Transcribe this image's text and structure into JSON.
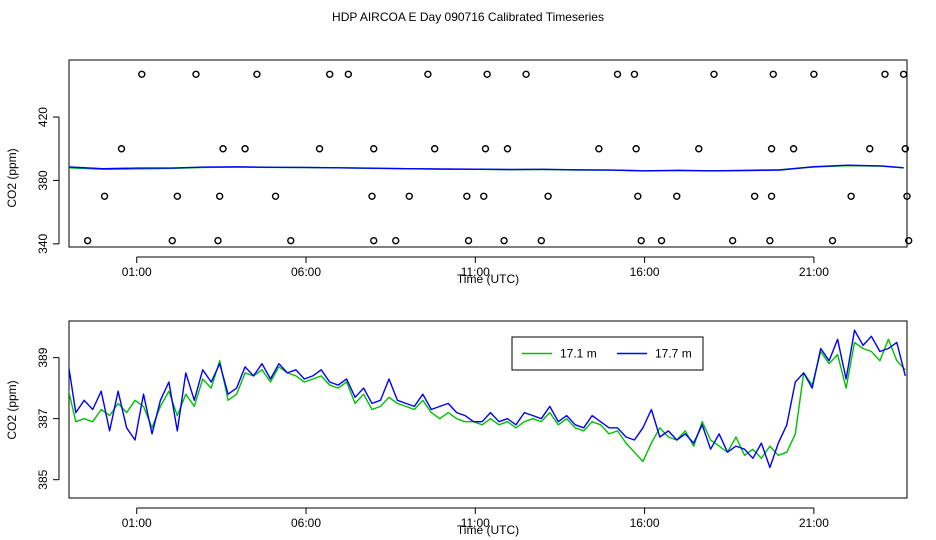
{
  "title": "HDP AIRCOA E  Day 090716  Calibrated Timeseries",
  "colors": {
    "green": "#00c000",
    "blue": "#0000ff",
    "axis": "#000000"
  },
  "chart_data": [
    {
      "type": "scatter",
      "title": "",
      "xlabel": "Time (UTC)",
      "ylabel": "CO2 (ppm)",
      "xlim": [
        -1.0,
        23.75
      ],
      "ylim": [
        338,
        456
      ],
      "x_ticks": [
        1,
        6,
        11,
        16,
        21
      ],
      "x_tick_labels": [
        "01:00",
        "06:00",
        "11:00",
        "16:00",
        "21:00"
      ],
      "y_ticks": [
        340,
        380,
        420
      ],
      "y_tick_labels": [
        "340",
        "380",
        "420"
      ],
      "grid": false,
      "series": [
        {
          "kind": "points",
          "x": [
            1.15,
            2.75,
            4.55,
            6.7,
            7.25,
            9.6,
            11.35,
            12.5,
            15.2,
            15.7,
            18.05,
            19.8,
            21.0,
            23.1,
            23.65,
            0.55,
            3.55,
            4.2,
            6.4,
            8.0,
            9.8,
            11.3,
            11.95,
            14.65,
            15.75,
            17.6,
            19.75,
            20.4,
            22.65,
            23.7,
            0.05,
            2.2,
            3.45,
            5.1,
            7.95,
            9.05,
            10.75,
            11.25,
            13.15,
            15.8,
            16.95,
            19.25,
            19.75,
            22.1,
            23.75,
            -0.45,
            2.05,
            3.4,
            5.55,
            8.0,
            8.65,
            10.8,
            11.85,
            12.95,
            15.9,
            16.5,
            18.6,
            19.7,
            21.55,
            23.8
          ],
          "y": [
            447,
            447,
            447,
            447,
            447,
            447,
            447,
            447,
            447,
            447,
            447,
            447,
            447,
            447,
            447,
            400,
            400,
            400,
            400,
            400,
            400,
            400,
            400,
            400,
            400,
            400,
            400,
            400,
            400,
            400,
            370,
            370,
            370,
            370,
            370,
            370,
            370,
            370,
            370,
            370,
            370,
            370,
            370,
            370,
            370,
            342,
            342,
            342,
            342,
            342,
            342,
            342,
            342,
            342,
            342,
            342,
            342,
            342,
            342,
            342
          ]
        },
        {
          "kind": "line",
          "color": "#00c000",
          "x": [
            -1.0,
            0.0,
            1.0,
            2.0,
            3.0,
            4.0,
            5.0,
            6.0,
            7.0,
            8.0,
            9.0,
            10.0,
            11.0,
            12.0,
            13.0,
            14.0,
            15.0,
            16.0,
            17.0,
            18.0,
            19.0,
            20.0,
            21.0,
            22.0,
            23.0,
            23.65
          ],
          "y": [
            388,
            387,
            387.3,
            387.6,
            388.2,
            388.4,
            388.2,
            388.1,
            388.0,
            387.6,
            387.4,
            387.1,
            387.0,
            386.8,
            386.9,
            386.6,
            386.5,
            386.0,
            386.2,
            386.0,
            386.4,
            386.8,
            388.5,
            389.3,
            389.0,
            388.0
          ]
        },
        {
          "kind": "line",
          "color": "#0000ff",
          "x": [
            -1.0,
            0.0,
            1.0,
            2.0,
            3.0,
            4.0,
            5.0,
            6.0,
            7.0,
            8.0,
            9.0,
            10.0,
            11.0,
            12.0,
            13.0,
            14.0,
            15.0,
            16.0,
            17.0,
            18.0,
            19.0,
            20.0,
            21.0,
            22.0,
            23.0,
            23.65
          ],
          "y": [
            388.5,
            387.4,
            387.8,
            387.8,
            388.4,
            388.6,
            388.3,
            388.2,
            388.0,
            387.7,
            387.4,
            387.2,
            387.1,
            386.9,
            387.0,
            386.7,
            386.5,
            386.1,
            386.4,
            386.1,
            386.3,
            386.6,
            388.7,
            389.6,
            389.2,
            388.0
          ]
        }
      ]
    },
    {
      "type": "line",
      "title": "",
      "xlabel": "Time (UTC)",
      "ylabel": "CO2 (ppm)",
      "xlim": [
        -1.0,
        23.75
      ],
      "ylim": [
        384.4,
        390.2
      ],
      "x_ticks": [
        1,
        6,
        11,
        16,
        21
      ],
      "x_tick_labels": [
        "01:00",
        "06:00",
        "11:00",
        "16:00",
        "21:00"
      ],
      "y_ticks": [
        385,
        387,
        389
      ],
      "y_tick_labels": [
        "385",
        "387",
        "389"
      ],
      "grid": false,
      "legend": "top-right",
      "series": [
        {
          "name": "17.1 m",
          "color": "#00c000",
          "x": [
            -1.05,
            -0.8,
            -0.55,
            -0.3,
            -0.05,
            0.2,
            0.45,
            0.7,
            0.95,
            1.2,
            1.45,
            1.7,
            1.95,
            2.2,
            2.45,
            2.7,
            2.95,
            3.2,
            3.45,
            3.7,
            3.95,
            4.2,
            4.45,
            4.7,
            4.95,
            5.2,
            5.45,
            5.7,
            5.95,
            6.2,
            6.45,
            6.7,
            6.95,
            7.2,
            7.45,
            7.7,
            7.95,
            8.2,
            8.45,
            8.7,
            8.95,
            9.2,
            9.45,
            9.7,
            9.95,
            10.2,
            10.45,
            10.7,
            10.95,
            11.2,
            11.45,
            11.7,
            11.95,
            12.2,
            12.45,
            12.7,
            12.95,
            13.2,
            13.45,
            13.7,
            13.95,
            14.2,
            14.45,
            14.7,
            14.95,
            15.2,
            15.45,
            15.7,
            15.95,
            16.2,
            16.45,
            16.7,
            16.95,
            17.2,
            17.45,
            17.7,
            17.95,
            18.2,
            18.45,
            18.7,
            18.95,
            19.2,
            19.45,
            19.7,
            19.95,
            20.2,
            20.45,
            20.7,
            20.95,
            21.2,
            21.45,
            21.7,
            21.95,
            22.2,
            22.45,
            22.7,
            22.95,
            23.2,
            23.45,
            23.7
          ],
          "y": [
            388.1,
            386.9,
            387.0,
            386.9,
            387.3,
            387.1,
            387.5,
            387.2,
            387.6,
            387.4,
            386.7,
            387.4,
            387.9,
            387.1,
            387.8,
            387.4,
            388.3,
            388.0,
            388.9,
            387.6,
            387.8,
            388.5,
            388.4,
            388.6,
            388.2,
            388.7,
            388.5,
            388.4,
            388.2,
            388.3,
            388.4,
            388.1,
            388.0,
            388.2,
            387.5,
            387.8,
            387.3,
            387.4,
            387.7,
            387.5,
            387.4,
            387.3,
            387.6,
            387.2,
            387.0,
            387.2,
            387.0,
            386.9,
            386.9,
            386.8,
            387.0,
            386.8,
            386.9,
            386.7,
            386.9,
            387.0,
            386.9,
            387.2,
            386.8,
            387.0,
            386.7,
            386.6,
            386.9,
            386.8,
            386.5,
            386.6,
            386.2,
            385.9,
            385.6,
            386.2,
            386.7,
            386.4,
            386.3,
            386.6,
            386.1,
            386.9,
            386.3,
            386.1,
            385.9,
            386.4,
            385.8,
            386.0,
            385.7,
            386.1,
            385.8,
            385.9,
            386.5,
            388.5,
            388.1,
            389.2,
            388.8,
            389.1,
            388.0,
            389.5,
            389.3,
            389.2,
            388.9,
            389.6,
            388.9,
            388.6
          ]
        },
        {
          "name": "17.7 m",
          "color": "#0000ff",
          "x": [
            -1.05,
            -0.8,
            -0.55,
            -0.3,
            -0.05,
            0.2,
            0.45,
            0.7,
            0.95,
            1.2,
            1.45,
            1.7,
            1.95,
            2.2,
            2.45,
            2.7,
            2.95,
            3.2,
            3.45,
            3.7,
            3.95,
            4.2,
            4.45,
            4.7,
            4.95,
            5.2,
            5.45,
            5.7,
            5.95,
            6.2,
            6.45,
            6.7,
            6.95,
            7.2,
            7.45,
            7.7,
            7.95,
            8.2,
            8.45,
            8.7,
            8.95,
            9.2,
            9.45,
            9.7,
            9.95,
            10.2,
            10.45,
            10.7,
            10.95,
            11.2,
            11.45,
            11.7,
            11.95,
            12.2,
            12.45,
            12.7,
            12.95,
            13.2,
            13.45,
            13.7,
            13.95,
            14.2,
            14.45,
            14.7,
            14.95,
            15.2,
            15.45,
            15.7,
            15.95,
            16.2,
            16.45,
            16.7,
            16.95,
            17.2,
            17.45,
            17.7,
            17.95,
            18.2,
            18.45,
            18.7,
            18.95,
            19.2,
            19.45,
            19.7,
            19.95,
            20.2,
            20.45,
            20.7,
            20.95,
            21.2,
            21.45,
            21.7,
            21.95,
            22.2,
            22.45,
            22.7,
            22.95,
            23.2,
            23.45,
            23.7
          ],
          "y": [
            389.0,
            387.2,
            387.6,
            387.3,
            387.9,
            386.6,
            387.9,
            386.7,
            386.3,
            387.8,
            386.5,
            387.6,
            388.2,
            386.6,
            388.5,
            387.6,
            388.6,
            388.2,
            388.8,
            387.8,
            388.0,
            388.7,
            388.4,
            388.8,
            388.3,
            388.8,
            388.5,
            388.6,
            388.3,
            388.4,
            388.6,
            388.2,
            388.1,
            388.3,
            387.7,
            388.0,
            387.5,
            387.6,
            388.3,
            387.6,
            387.5,
            387.4,
            387.8,
            387.3,
            387.4,
            387.5,
            387.2,
            387.1,
            386.9,
            386.9,
            387.2,
            386.9,
            387.0,
            386.8,
            387.2,
            387.1,
            387.0,
            387.4,
            386.9,
            387.1,
            386.8,
            386.7,
            387.1,
            386.9,
            386.7,
            386.7,
            386.4,
            386.3,
            386.7,
            387.3,
            386.4,
            386.6,
            386.3,
            386.5,
            386.2,
            386.8,
            386.0,
            386.5,
            385.9,
            386.1,
            386.0,
            385.7,
            386.2,
            385.4,
            386.2,
            386.8,
            388.2,
            388.5,
            388.0,
            389.3,
            388.9,
            389.6,
            388.3,
            389.9,
            389.4,
            389.7,
            389.2,
            389.3,
            389.5,
            388.4
          ]
        }
      ]
    }
  ]
}
